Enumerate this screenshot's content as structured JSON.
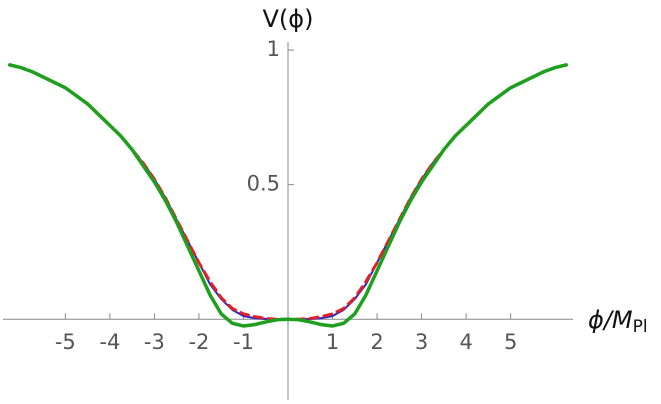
{
  "chart_data": {
    "type": "line",
    "y_label": "V(ϕ)",
    "x_label": "ϕ/M",
    "x_label_sub": "Pl",
    "x": [
      -6.25,
      -6,
      -5.75,
      -5.5,
      -5.25,
      -5,
      -4.75,
      -4.5,
      -4.25,
      -4,
      -3.75,
      -3.5,
      -3.25,
      -3,
      -2.75,
      -2.5,
      -2.25,
      -2,
      -1.75,
      -1.5,
      -1.25,
      -1,
      -0.75,
      -0.5,
      -0.25,
      0,
      0.25,
      0.5,
      0.75,
      1,
      1.25,
      1.5,
      1.75,
      2,
      2.25,
      2.5,
      2.75,
      3,
      3.25,
      3.5,
      3.75,
      4,
      4.25,
      4.5,
      4.75,
      5,
      5.25,
      5.5,
      5.75,
      6,
      6.25
    ],
    "series": [
      {
        "color": "#2626c8",
        "style": "solid",
        "width": 2,
        "values": [
          0.945,
          0.935,
          0.92,
          0.9,
          0.88,
          0.86,
          0.83,
          0.8,
          0.76,
          0.72,
          0.68,
          0.63,
          0.58,
          0.52,
          0.45,
          0.37,
          0.29,
          0.21,
          0.13,
          0.075,
          0.035,
          0.012,
          0.004,
          0.001,
          0,
          0,
          0,
          0.001,
          0.004,
          0.012,
          0.035,
          0.075,
          0.13,
          0.21,
          0.29,
          0.37,
          0.45,
          0.52,
          0.58,
          0.63,
          0.68,
          0.72,
          0.76,
          0.8,
          0.83,
          0.86,
          0.88,
          0.9,
          0.92,
          0.935,
          0.945
        ]
      },
      {
        "color": "#e0202a",
        "style": "dashed",
        "width": 3,
        "values": [
          0.945,
          0.935,
          0.92,
          0.9,
          0.88,
          0.86,
          0.83,
          0.8,
          0.76,
          0.72,
          0.68,
          0.63,
          0.58,
          0.52,
          0.45,
          0.37,
          0.29,
          0.21,
          0.14,
          0.08,
          0.04,
          0.02,
          0.01,
          0.003,
          0,
          0,
          0,
          0.003,
          0.01,
          0.02,
          0.04,
          0.08,
          0.14,
          0.21,
          0.29,
          0.37,
          0.45,
          0.52,
          0.58,
          0.63,
          0.68,
          0.72,
          0.76,
          0.8,
          0.83,
          0.86,
          0.88,
          0.9,
          0.92,
          0.935,
          0.945
        ]
      },
      {
        "color": "#1ea01e",
        "style": "solid",
        "width": 3.5,
        "values": [
          0.945,
          0.935,
          0.92,
          0.9,
          0.88,
          0.86,
          0.83,
          0.8,
          0.76,
          0.72,
          0.68,
          0.63,
          0.57,
          0.51,
          0.44,
          0.36,
          0.27,
          0.18,
          0.09,
          0.02,
          -0.015,
          -0.025,
          -0.02,
          -0.01,
          -0.002,
          0,
          -0.002,
          -0.01,
          -0.02,
          -0.025,
          -0.015,
          0.02,
          0.09,
          0.18,
          0.27,
          0.36,
          0.44,
          0.51,
          0.57,
          0.63,
          0.68,
          0.72,
          0.76,
          0.8,
          0.83,
          0.86,
          0.88,
          0.9,
          0.92,
          0.935,
          0.945
        ]
      }
    ],
    "xlim": [
      -6.4,
      6.4
    ],
    "ylim": [
      -0.3,
      1.03
    ],
    "xticks": [
      -5,
      -4,
      -3,
      -2,
      -1,
      1,
      2,
      3,
      4,
      5
    ],
    "yticks": [
      0.5,
      1
    ]
  }
}
